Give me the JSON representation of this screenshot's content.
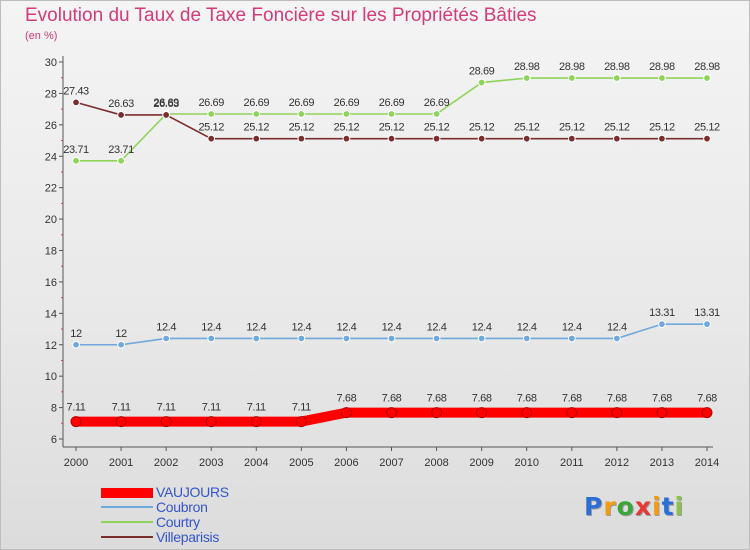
{
  "header": {
    "title": "Evolution du Taux de Taxe Foncière sur les Propriétés Bâties",
    "subtitle": "(en %)"
  },
  "brand": {
    "letters": [
      "P",
      "r",
      "o",
      "x",
      "i",
      "t",
      "i"
    ],
    "colors": [
      "#2b6fd6",
      "#f39c12",
      "#3aa63a",
      "#e53935",
      "#f39c12",
      "#2b6fd6",
      "#8bc34a"
    ]
  },
  "chart_data": {
    "type": "line",
    "title": "Evolution du Taux de Taxe Foncière sur les Propriétés Bâties",
    "ylabel": "(en %)",
    "xlabel": "",
    "x": [
      "2000",
      "2001",
      "2002",
      "2003",
      "2004",
      "2005",
      "2006",
      "2007",
      "2008",
      "2009",
      "2010",
      "2011",
      "2012",
      "2013",
      "2014"
    ],
    "ylim": [
      6,
      30
    ],
    "yticks": [
      "6",
      "8",
      "10",
      "12",
      "14",
      "16",
      "18",
      "20",
      "22",
      "24",
      "26",
      "28",
      "30"
    ],
    "grid": false,
    "legend_position": "bottom-left",
    "series": [
      {
        "name": "VAUJOURS",
        "color": "#ff0000",
        "emphasis": true,
        "values": [
          7.11,
          7.11,
          7.11,
          7.11,
          7.11,
          7.11,
          7.68,
          7.68,
          7.68,
          7.68,
          7.68,
          7.68,
          7.68,
          7.68,
          7.68
        ],
        "labels": [
          "7.11",
          "7.11",
          "7.11",
          "7.11",
          "7.11",
          "7.11",
          "7.68",
          "7.68",
          "7.68",
          "7.68",
          "7.68",
          "7.68",
          "7.68",
          "7.68",
          "7.68"
        ]
      },
      {
        "name": "Coubron",
        "color": "#6fa8dc",
        "emphasis": false,
        "values": [
          12,
          12,
          12.4,
          12.4,
          12.4,
          12.4,
          12.4,
          12.4,
          12.4,
          12.4,
          12.4,
          12.4,
          12.4,
          13.31,
          13.31
        ],
        "labels": [
          "12",
          "12",
          "12.4",
          "12.4",
          "12.4",
          "12.4",
          "12.4",
          "12.4",
          "12.4",
          "12.4",
          "12.4",
          "12.4",
          "12.4",
          "13.31",
          "13.31"
        ]
      },
      {
        "name": "Courtry",
        "color": "#8fd45a",
        "emphasis": false,
        "values": [
          23.71,
          23.71,
          26.69,
          26.69,
          26.69,
          26.69,
          26.69,
          26.69,
          26.69,
          28.69,
          28.98,
          28.98,
          28.98,
          28.98,
          28.98
        ],
        "labels": [
          "23.71",
          "23.71",
          "26.69",
          "26.69",
          "26.69",
          "26.69",
          "26.69",
          "26.69",
          "26.69",
          "28.69",
          "28.98",
          "28.98",
          "28.98",
          "28.98",
          "28.98"
        ]
      },
      {
        "name": "Villeparisis",
        "color": "#7a2e2e",
        "emphasis": false,
        "values": [
          27.43,
          26.63,
          26.63,
          25.12,
          25.12,
          25.12,
          25.12,
          25.12,
          25.12,
          25.12,
          25.12,
          25.12,
          25.12,
          25.12,
          25.12
        ],
        "labels": [
          "27.43",
          "26.63",
          "26.63",
          "25.12",
          "25.12",
          "25.12",
          "25.12",
          "25.12",
          "25.12",
          "25.12",
          "25.12",
          "25.12",
          "25.12",
          "25.12",
          "25.12"
        ]
      }
    ]
  }
}
